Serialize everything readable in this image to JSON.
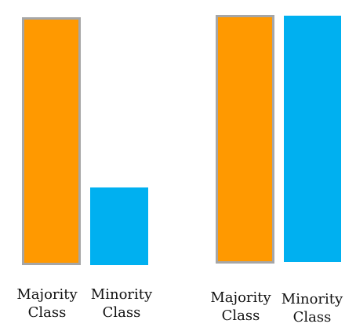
{
  "colors": {
    "majority": "#ff9900",
    "minority": "#00b0f0",
    "border": "#a6a6a6"
  },
  "panels": [
    {
      "majority": {
        "relative_height": 1.0,
        "label_line1": "Majority",
        "label_line2": "Class"
      },
      "minority": {
        "relative_height": 0.32,
        "label_line1": "Minority",
        "label_line2": "Class"
      }
    },
    {
      "majority": {
        "relative_height": 1.0,
        "label_line1": "Majority",
        "label_line2": "Class"
      },
      "minority": {
        "relative_height": 0.99,
        "label_line1": "Minority",
        "label_line2": "Class"
      }
    }
  ]
}
